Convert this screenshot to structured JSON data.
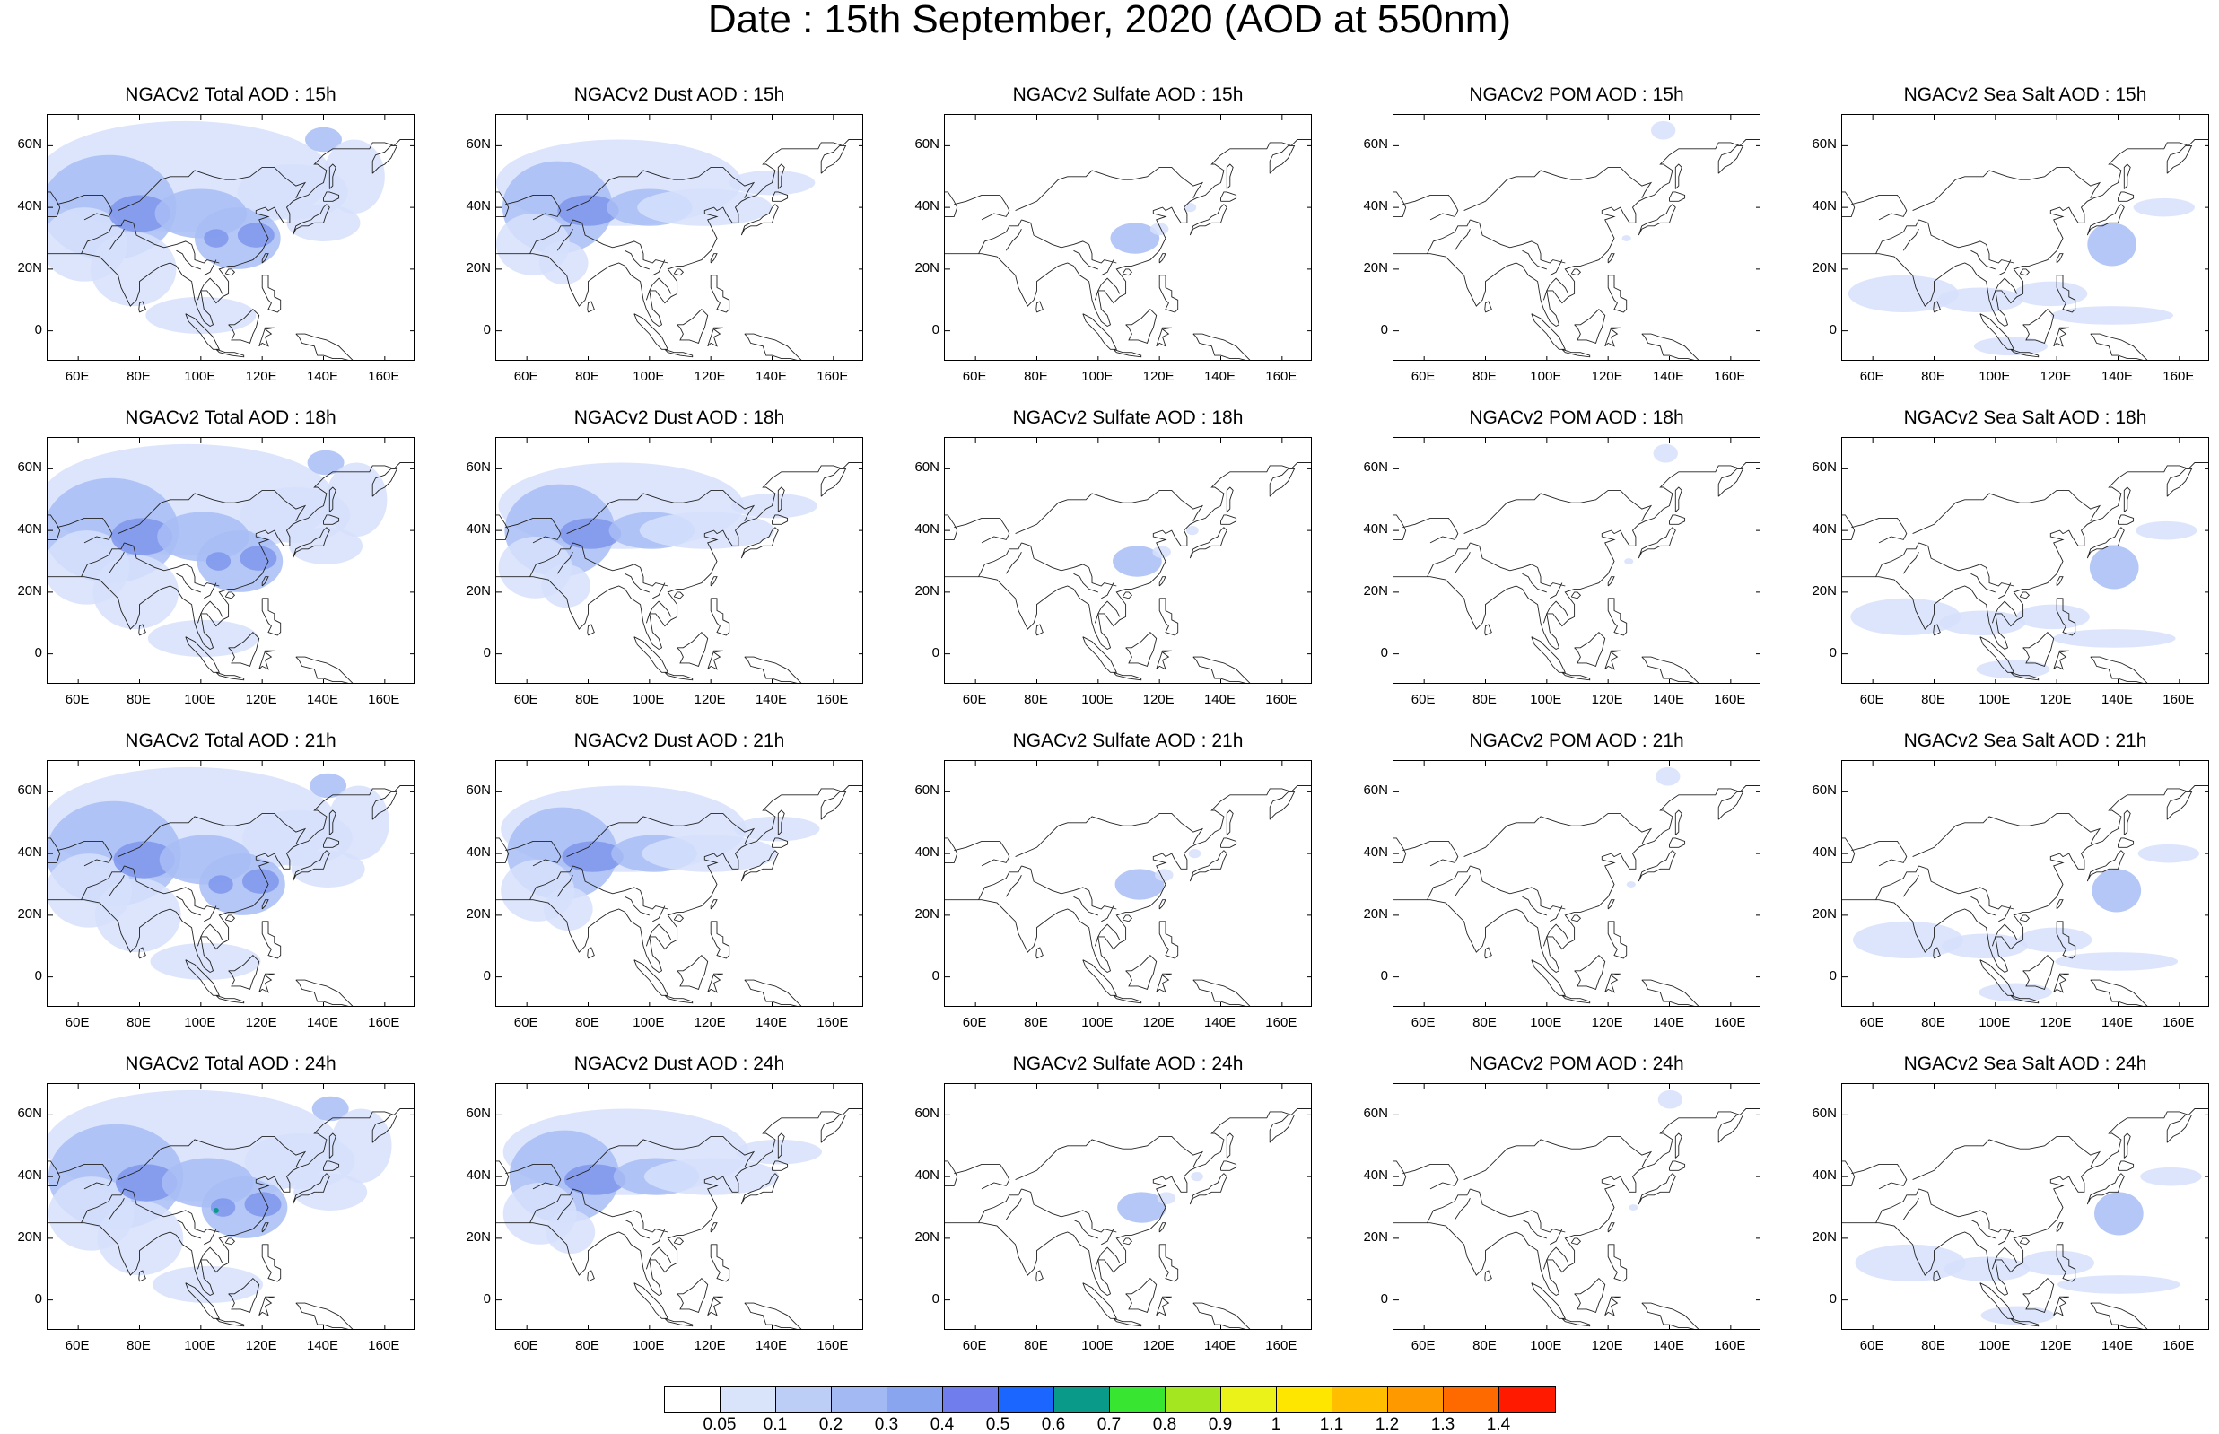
{
  "title": "Date : 15th September, 2020 (AOD at 550nm)",
  "panel_titles": [
    [
      "NGACv2 Total AOD : 15h",
      "NGACv2 Dust AOD : 15h",
      "NGACv2 Sulfate AOD : 15h",
      "NGACv2 POM AOD : 15h",
      "NGACv2 Sea Salt AOD : 15h"
    ],
    [
      "NGACv2 Total AOD : 18h",
      "NGACv2 Dust AOD : 18h",
      "NGACv2 Sulfate AOD : 18h",
      "NGACv2 POM AOD : 18h",
      "NGACv2 Sea Salt AOD : 18h"
    ],
    [
      "NGACv2 Total AOD : 21h",
      "NGACv2 Dust AOD : 21h",
      "NGACv2 Sulfate AOD : 21h",
      "NGACv2 POM AOD : 21h",
      "NGACv2 Sea Salt AOD : 21h"
    ],
    [
      "NGACv2 Total AOD : 24h",
      "NGACv2 Dust AOD : 24h",
      "NGACv2 Sulfate AOD : 24h",
      "NGACv2 POM AOD : 24h",
      "NGACv2 Sea Salt  AOD : 24h"
    ]
  ],
  "map_extent": {
    "lon": [
      50,
      170
    ],
    "lat": [
      -10,
      70
    ]
  },
  "lat_tick_labels": [
    "60N",
    "40N",
    "20N",
    "0"
  ],
  "lat_tick_values": [
    60,
    40,
    20,
    0
  ],
  "lon_tick_labels": [
    "60E",
    "80E",
    "100E",
    "120E",
    "140E",
    "160E"
  ],
  "lon_tick_values": [
    60,
    80,
    100,
    120,
    140,
    160
  ],
  "colorbar": {
    "labels": [
      "0.05",
      "0.1",
      "0.2",
      "0.3",
      "0.4",
      "0.5",
      "0.6",
      "0.7",
      "0.8",
      "0.9",
      "1",
      "1.1",
      "1.2",
      "1.3",
      "1.4"
    ],
    "colors": [
      "#ffffff",
      "#d9e4fa",
      "#bccdf6",
      "#a3b9f3",
      "#8aa5f0",
      "#6f7ded",
      "#1a66ff",
      "#0a9a8a",
      "#38e632",
      "#a4e620",
      "#eaf21a",
      "#ffe600",
      "#ffbf00",
      "#ff9900",
      "#ff6a00",
      "#ff1a00"
    ]
  },
  "field_colors": {
    "light": "#d6e1fb",
    "medium": "#a8bdf4",
    "strong": "#7f97ec",
    "deep": "#5f79e6"
  }
}
